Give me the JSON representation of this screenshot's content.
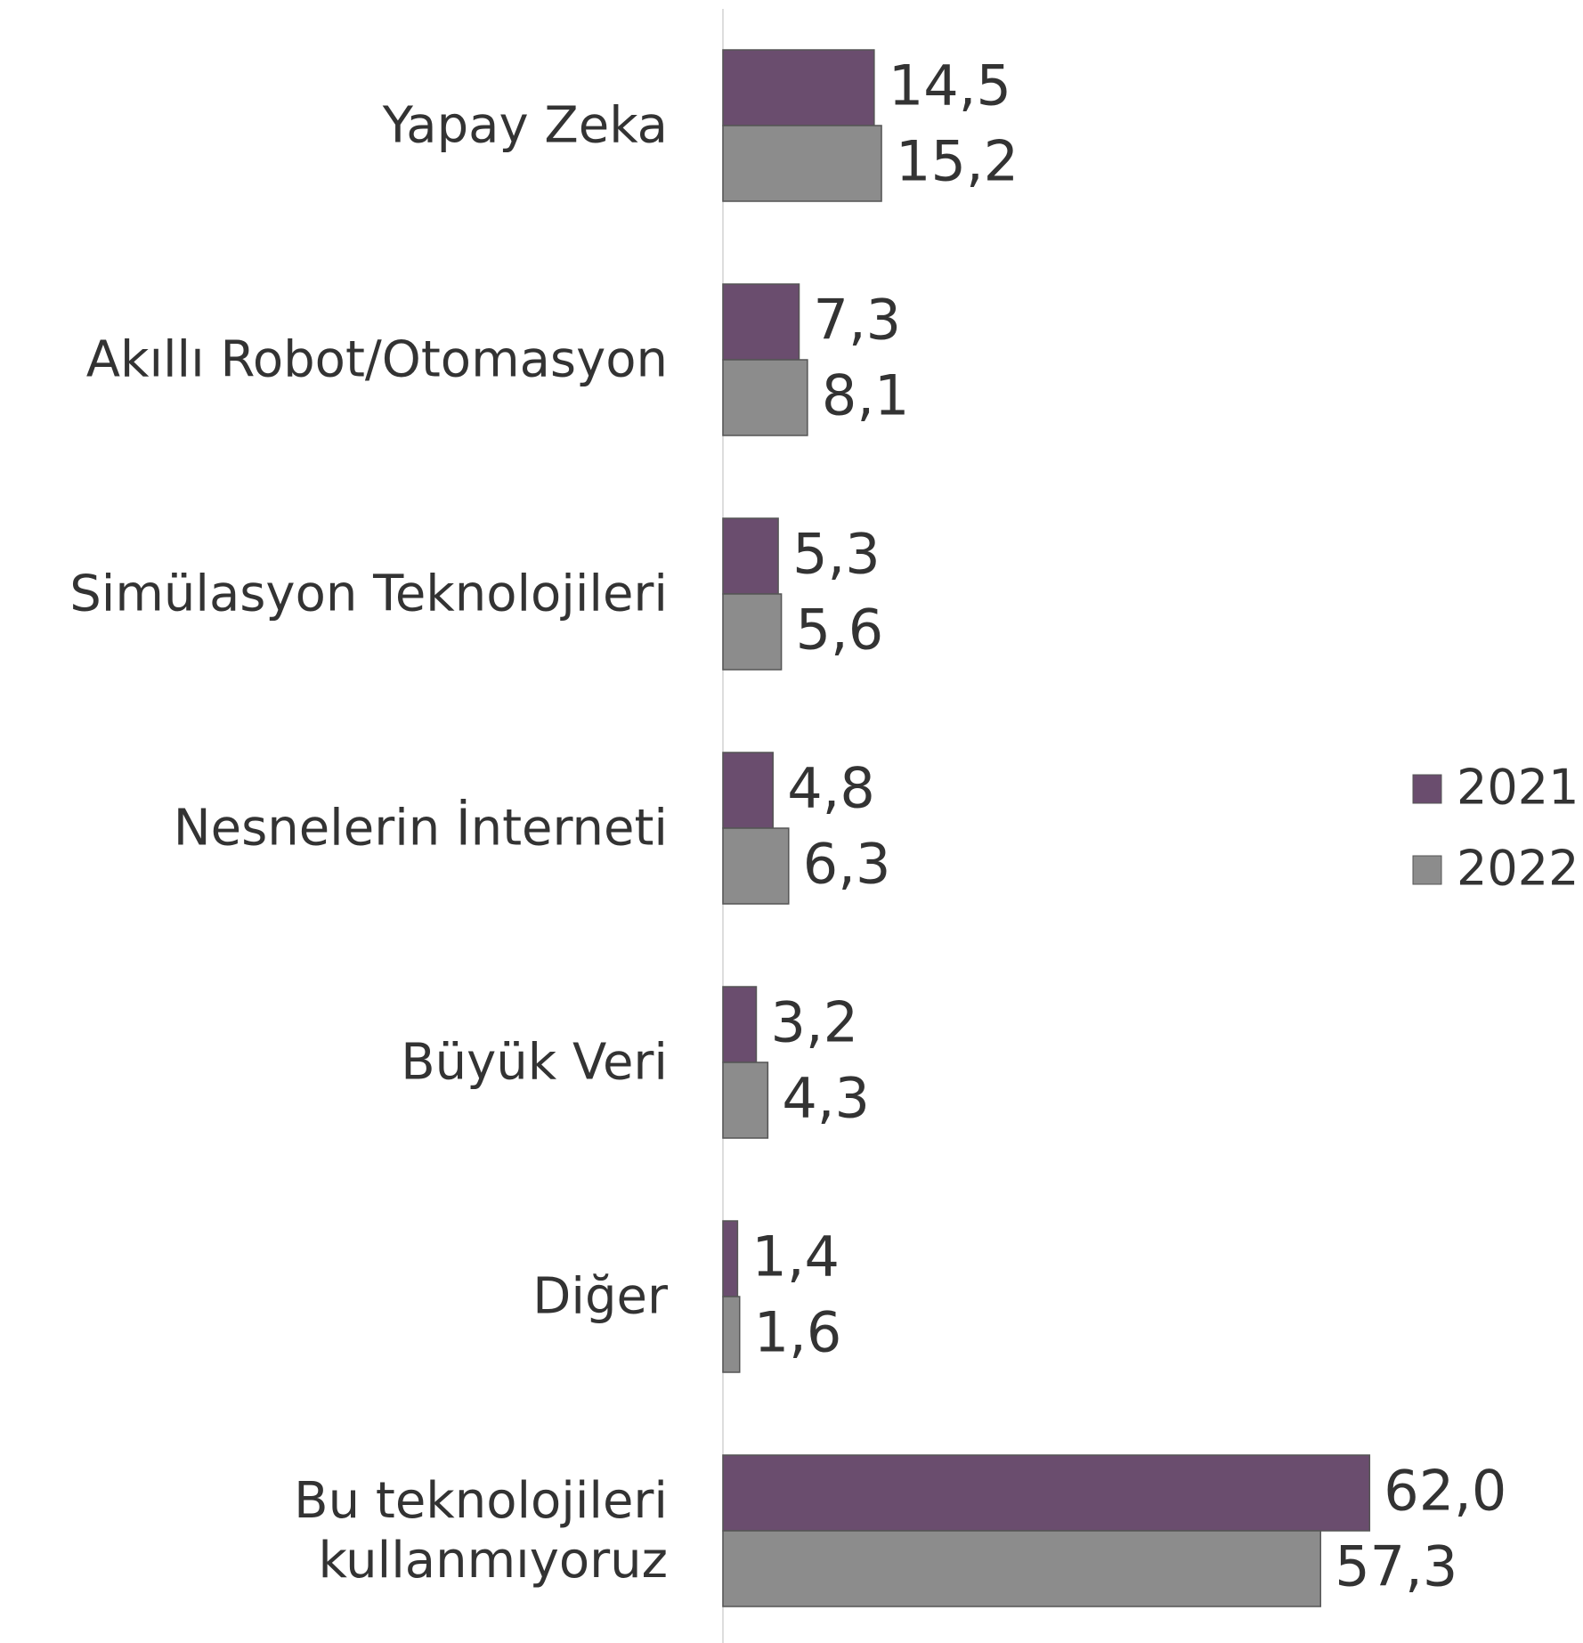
{
  "chart_data": {
    "type": "barh",
    "categories": [
      "Yapay Zeka",
      "Akıllı Robot/Otomasyon",
      "Simülasyon Teknolojileri",
      "Nesnelerin İnterneti",
      "Büyük Veri",
      "Diğer",
      "Bu teknolojileri\nkullanmıyoruz"
    ],
    "series": [
      {
        "name": "2021",
        "color": "#6a4d6e",
        "values": [
          14.5,
          7.3,
          5.3,
          4.8,
          3.2,
          1.4,
          62.0
        ],
        "value_labels": [
          "14,5",
          "7,3",
          "5,3",
          "4,8",
          "3,2",
          "1,4",
          "62,0"
        ]
      },
      {
        "name": "2022",
        "color": "#8c8c8c",
        "values": [
          15.2,
          8.1,
          5.6,
          6.3,
          4.3,
          1.6,
          57.3
        ],
        "value_labels": [
          "15,2",
          "8,1",
          "5,6",
          "6,3",
          "4,3",
          "1,6",
          "57,3"
        ]
      }
    ],
    "xlim": [
      0,
      70
    ],
    "legend": "right"
  }
}
